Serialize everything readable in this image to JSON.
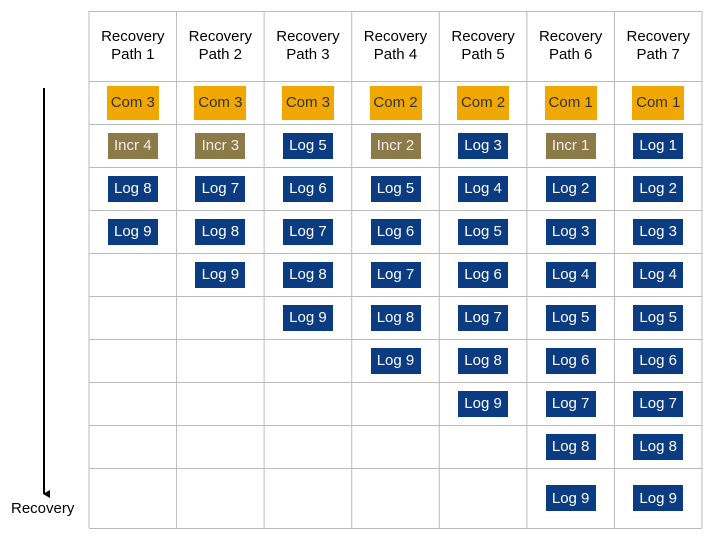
{
  "axis_label": "Recovery",
  "columns": [
    {
      "header": "Recovery Path 1",
      "cells": [
        {
          "label": "Com 3",
          "color": "#f0a800"
        },
        {
          "label": "Incr 4",
          "color": "#8c7b48"
        },
        {
          "label": "Log 8",
          "color": "#0b3b80"
        },
        {
          "label": "Log 9",
          "color": "#0b3b80"
        }
      ]
    },
    {
      "header": "Recovery Path 2",
      "cells": [
        {
          "label": "Com 3",
          "color": "#f0a800"
        },
        {
          "label": "Incr 3",
          "color": "#8c7b48"
        },
        {
          "label": "Log 7",
          "color": "#0b3b80"
        },
        {
          "label": "Log 8",
          "color": "#0b3b80"
        },
        {
          "label": "Log 9",
          "color": "#0b3b80"
        }
      ]
    },
    {
      "header": "Recovery Path 3",
      "cells": [
        {
          "label": "Com 3",
          "color": "#f0a800"
        },
        {
          "label": "Log 5",
          "color": "#0b3b80"
        },
        {
          "label": "Log 6",
          "color": "#0b3b80"
        },
        {
          "label": "Log 7",
          "color": "#0b3b80"
        },
        {
          "label": "Log 8",
          "color": "#0b3b80"
        },
        {
          "label": "Log 9",
          "color": "#0b3b80"
        }
      ]
    },
    {
      "header": "Recovery Path 4",
      "cells": [
        {
          "label": "Com 2",
          "color": "#f0a800"
        },
        {
          "label": "Incr 2",
          "color": "#8c7b48"
        },
        {
          "label": "Log 5",
          "color": "#0b3b80"
        },
        {
          "label": "Log 6",
          "color": "#0b3b80"
        },
        {
          "label": "Log 7",
          "color": "#0b3b80"
        },
        {
          "label": "Log 8",
          "color": "#0b3b80"
        },
        {
          "label": "Log 9",
          "color": "#0b3b80"
        }
      ]
    },
    {
      "header": "Recovery Path 5",
      "cells": [
        {
          "label": "Com 2",
          "color": "#f0a800"
        },
        {
          "label": "Log 3",
          "color": "#0b3b80"
        },
        {
          "label": "Log 4",
          "color": "#0b3b80"
        },
        {
          "label": "Log 5",
          "color": "#0b3b80"
        },
        {
          "label": "Log 6",
          "color": "#0b3b80"
        },
        {
          "label": "Log 7",
          "color": "#0b3b80"
        },
        {
          "label": "Log 8",
          "color": "#0b3b80"
        },
        {
          "label": "Log 9",
          "color": "#0b3b80"
        }
      ]
    },
    {
      "header": "Recovery Path 6",
      "cells": [
        {
          "label": "Com 1",
          "color": "#f0a800"
        },
        {
          "label": "Incr 1",
          "color": "#8c7b48"
        },
        {
          "label": "Log 2",
          "color": "#0b3b80"
        },
        {
          "label": "Log 3",
          "color": "#0b3b80"
        },
        {
          "label": "Log 4",
          "color": "#0b3b80"
        },
        {
          "label": "Log 5",
          "color": "#0b3b80"
        },
        {
          "label": "Log 6",
          "color": "#0b3b80"
        },
        {
          "label": "Log 7",
          "color": "#0b3b80"
        },
        {
          "label": "Log 8",
          "color": "#0b3b80"
        },
        {
          "label": "Log 9",
          "color": "#0b3b80"
        }
      ]
    },
    {
      "header": "Recovery Path 7",
      "cells": [
        {
          "label": "Com 1",
          "color": "#f0a800"
        },
        {
          "label": "Log 1",
          "color": "#0b3b80"
        },
        {
          "label": "Log 2",
          "color": "#0b3b80"
        },
        {
          "label": "Log 3",
          "color": "#0b3b80"
        },
        {
          "label": "Log 4",
          "color": "#0b3b80"
        },
        {
          "label": "Log 5",
          "color": "#0b3b80"
        },
        {
          "label": "Log 6",
          "color": "#0b3b80"
        },
        {
          "label": "Log 7",
          "color": "#0b3b80"
        },
        {
          "label": "Log 8",
          "color": "#0b3b80"
        },
        {
          "label": "Log 9",
          "color": "#0b3b80"
        }
      ]
    }
  ]
}
